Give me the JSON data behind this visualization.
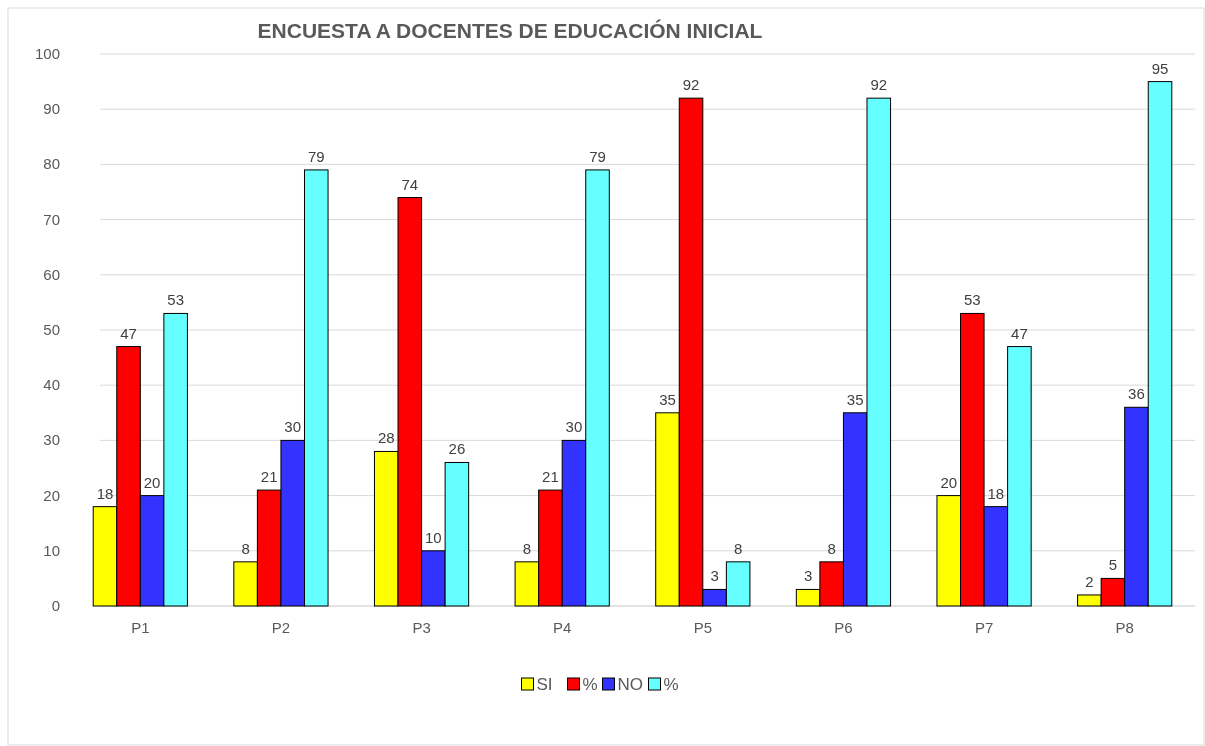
{
  "chart_data": {
    "type": "bar",
    "title": "ENCUESTA A DOCENTES DE EDUCACIÓN INICIAL",
    "categories": [
      "P1",
      "P2",
      "P3",
      "P4",
      "P5",
      "P6",
      "P7",
      "P8"
    ],
    "series": [
      {
        "name": "SI",
        "color": "#ffff00",
        "values": [
          18,
          8,
          28,
          8,
          35,
          3,
          20,
          2
        ]
      },
      {
        "name": "%",
        "color": "#ff0000",
        "values": [
          47,
          21,
          74,
          21,
          92,
          8,
          53,
          5
        ]
      },
      {
        "name": "NO",
        "color": "#3333ff",
        "values": [
          20,
          30,
          10,
          30,
          3,
          35,
          18,
          36
        ]
      },
      {
        "name": "%",
        "color": "#66ffff",
        "values": [
          53,
          79,
          26,
          79,
          8,
          92,
          47,
          95
        ]
      }
    ],
    "ylim": [
      0,
      100
    ],
    "yticks": [
      0,
      10,
      20,
      30,
      40,
      50,
      60,
      70,
      80,
      90,
      100
    ],
    "grid": "y",
    "legend": "bottom",
    "data_labels": true
  }
}
